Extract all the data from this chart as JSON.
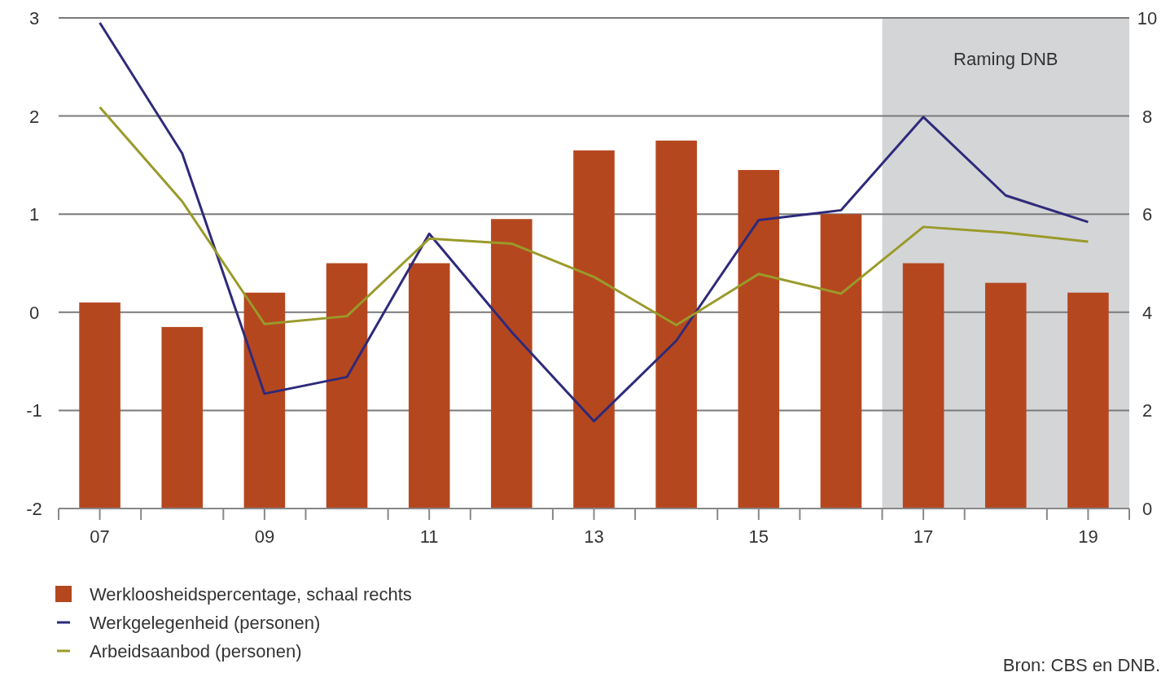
{
  "chart_data": {
    "type": "bar",
    "x": [
      2007,
      2008,
      2009,
      2010,
      2011,
      2012,
      2013,
      2014,
      2015,
      2016,
      2017,
      2018,
      2019
    ],
    "xlim": [
      2006.5,
      2019.5
    ],
    "xticks": [
      {
        "value": 2007,
        "label": "07"
      },
      {
        "value": 2009,
        "label": "09"
      },
      {
        "value": 2011,
        "label": "11"
      },
      {
        "value": 2013,
        "label": "13"
      },
      {
        "value": 2015,
        "label": "15"
      },
      {
        "value": 2017,
        "label": "17"
      },
      {
        "value": 2019,
        "label": "19"
      },
      {
        "value": 2006.5,
        "label": null
      },
      {
        "value": 2007.5,
        "label": null
      },
      {
        "value": 2008.5,
        "label": null
      },
      {
        "value": 2009.5,
        "label": null
      },
      {
        "value": 2010.5,
        "label": null
      },
      {
        "value": 2011.5,
        "label": null
      },
      {
        "value": 2012.5,
        "label": null
      },
      {
        "value": 2013.5,
        "label": null
      },
      {
        "value": 2014.5,
        "label": null
      },
      {
        "value": 2015.5,
        "label": null
      },
      {
        "value": 2016.5,
        "label": null
      },
      {
        "value": 2017.5,
        "label": null
      },
      {
        "value": 2018.5,
        "label": null
      },
      {
        "value": 2019.5,
        "label": null
      }
    ],
    "ylim": [
      -2,
      3
    ],
    "yticks": [
      -2,
      -1,
      0,
      1,
      2,
      3
    ],
    "y2lim": [
      0,
      10
    ],
    "y2ticks": [
      0,
      2,
      4,
      6,
      8,
      10
    ],
    "grid": "y",
    "legend": "bottom left",
    "bands": [
      {
        "axis": "x",
        "from": 2016.5,
        "to": 2019.5,
        "label": "Raming DNB",
        "color": "#d4d5d7"
      }
    ],
    "annotations": [
      "Bron: CBS en DNB."
    ],
    "series": [
      {
        "name": "Werkloosheidspercentage, schaal rechts",
        "axis": "y2",
        "color": "#b5471f",
        "values": [
          4.2,
          3.7,
          4.4,
          5.0,
          5.0,
          5.9,
          7.3,
          7.5,
          6.9,
          6.0,
          5.0,
          4.6,
          4.4
        ]
      },
      {
        "name": "Werkgelegenheid (personen)",
        "type": "line",
        "color": "#2e2a7a",
        "values": [
          2.95,
          1.62,
          -0.83,
          -0.66,
          0.8,
          -0.2,
          -1.11,
          -0.29,
          0.94,
          1.04,
          1.99,
          1.19,
          0.92
        ]
      },
      {
        "name": "Arbeidsaanbod (personen)",
        "type": "line",
        "color": "#9a9a2a",
        "values": [
          2.09,
          1.13,
          -0.12,
          -0.04,
          0.75,
          0.7,
          0.36,
          -0.13,
          0.39,
          0.19,
          0.87,
          0.81,
          0.72
        ]
      }
    ]
  }
}
